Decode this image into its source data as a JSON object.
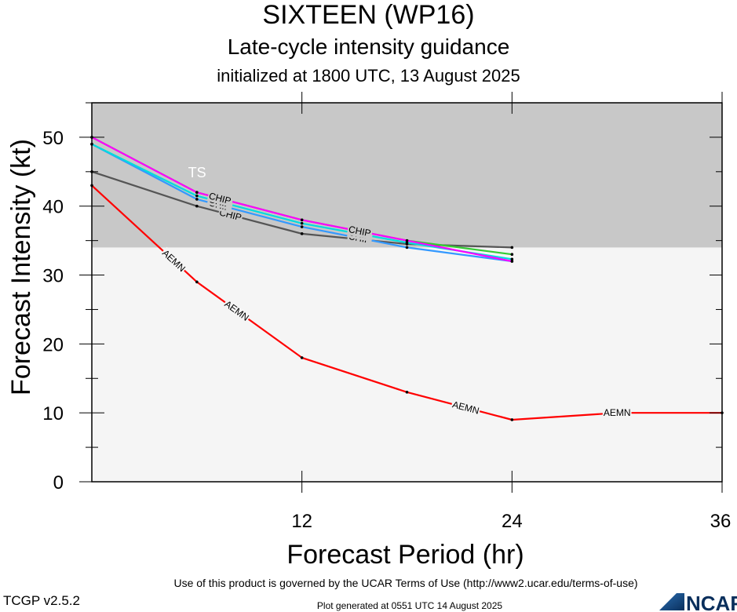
{
  "title": "SIXTEEN (WP16)",
  "subtitle": "Late-cycle intensity guidance",
  "init_text": "initialized at 1800 UTC, 13 August 2025",
  "footer": {
    "terms": "Use of this product is governed by the UCAR Terms of Use (http://www2.ucar.edu/terms-of-use)",
    "version": "TCGP v2.5.2",
    "generated": "Plot generated at 0551 UTC   14 August 2025",
    "logo_text": "NCAR"
  },
  "chart_data": {
    "type": "line",
    "xlabel": "Forecast Period (hr)",
    "ylabel": "Forecast Intensity (kt)",
    "xlim": [
      0,
      36
    ],
    "ylim": [
      0,
      55
    ],
    "x_ticks": [
      12,
      24,
      36
    ],
    "y_ticks": [
      0,
      10,
      20,
      30,
      40,
      50
    ],
    "band": {
      "label": "TS",
      "y_from": 34,
      "y_to": 55,
      "color": "#c8c8c8"
    },
    "below_band_color": "#f5f5f5",
    "series": [
      {
        "name": "AEMN",
        "color": "#ff0000",
        "x": [
          0,
          6,
          12,
          18,
          24,
          30,
          36
        ],
        "y": [
          43,
          29,
          18,
          13,
          9,
          10,
          10
        ]
      },
      {
        "name": "CHIP",
        "color": "#555555",
        "x": [
          0,
          6,
          12,
          18,
          24
        ],
        "y": [
          45,
          40,
          36,
          34.5,
          34
        ]
      },
      {
        "name": "CHIP",
        "color": "#3399ff",
        "x": [
          0,
          6,
          12,
          18,
          24
        ],
        "y": [
          49,
          41,
          37,
          34,
          32
        ]
      },
      {
        "name": "CHIP",
        "color": "#00dddd",
        "x": [
          0,
          6,
          12,
          18,
          24
        ],
        "y": [
          49,
          41.5,
          37.5,
          34.7,
          32.3
        ]
      },
      {
        "name": "CHIP",
        "color": "#33cc33",
        "x": [
          0,
          6,
          12,
          18,
          24
        ],
        "y": [
          50,
          42,
          38,
          35,
          33
        ]
      },
      {
        "name": "CHIP",
        "color": "#ff00ff",
        "x": [
          0,
          6,
          12,
          18,
          24
        ],
        "y": [
          50,
          42,
          38,
          35,
          32
        ]
      }
    ]
  }
}
